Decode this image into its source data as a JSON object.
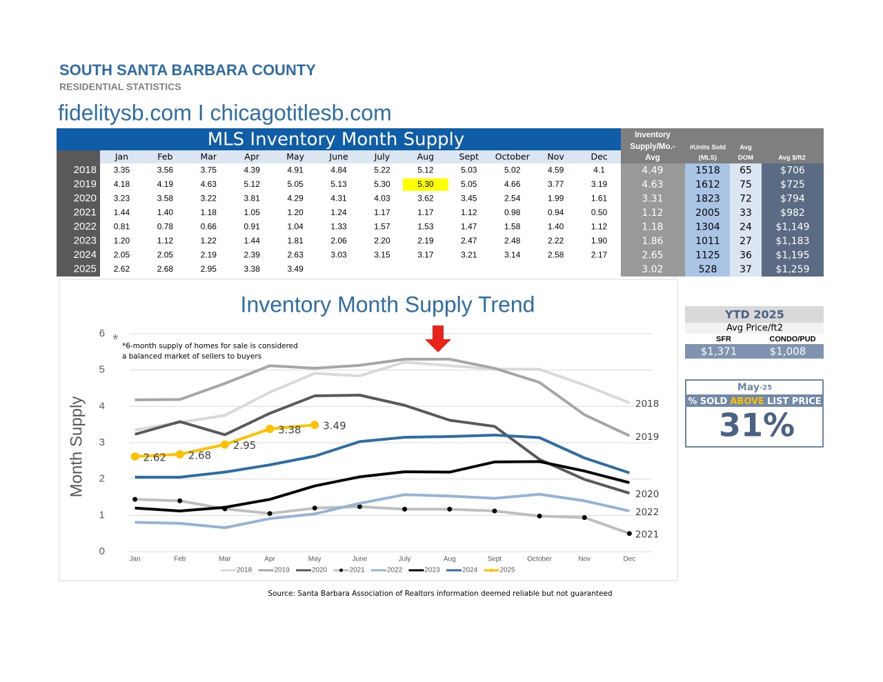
{
  "header": {
    "title": "SOUTH SANTA BARBARA COUNTY",
    "subtitle": "RESIDENTIAL STATISTICS",
    "website": "fidelitysb.com I chicagotitlesb.com"
  },
  "table": {
    "title": "MLS Inventory Month Supply",
    "months": [
      "Jan",
      "Feb",
      "Mar",
      "Apr",
      "May",
      "June",
      "July",
      "Aug",
      "Sept",
      "October",
      "Nov",
      "Dec"
    ],
    "summary_headers": [
      [
        "Inventory",
        "Supply/Mo.-",
        "Avg"
      ],
      [
        "#Units Sold",
        "(MLS)"
      ],
      [
        "Avg",
        "DOM"
      ],
      [
        "Avg $/ft2"
      ]
    ],
    "highlight": {
      "row": 1,
      "col": 7
    },
    "rows": [
      {
        "year": "2018",
        "values": [
          "3.35",
          "3.56",
          "3.75",
          "4.39",
          "4.91",
          "4.84",
          "5.22",
          "5.12",
          "5.03",
          "5.02",
          "4.59",
          "4.1"
        ],
        "avg": "4.49",
        "units": "1518",
        "dom": "65",
        "price": "$706"
      },
      {
        "year": "2019",
        "values": [
          "4.18",
          "4.19",
          "4.63",
          "5.12",
          "5.05",
          "5.13",
          "5.30",
          "5.30",
          "5.05",
          "4.66",
          "3.77",
          "3.19"
        ],
        "avg": "4.63",
        "units": "1612",
        "dom": "75",
        "price": "$725"
      },
      {
        "year": "2020",
        "values": [
          "3.23",
          "3.58",
          "3.22",
          "3.81",
          "4.29",
          "4.31",
          "4.03",
          "3.62",
          "3.45",
          "2.54",
          "1.99",
          "1.61"
        ],
        "avg": "3.31",
        "units": "1823",
        "dom": "72",
        "price": "$794"
      },
      {
        "year": "2021",
        "values": [
          "1.44",
          "1.40",
          "1.18",
          "1.05",
          "1.20",
          "1.24",
          "1.17",
          "1.17",
          "1.12",
          "0.98",
          "0.94",
          "0.50"
        ],
        "avg": "1.12",
        "units": "2005",
        "dom": "33",
        "price": "$982"
      },
      {
        "year": "2022",
        "values": [
          "0.81",
          "0.78",
          "0.66",
          "0.91",
          "1.04",
          "1.33",
          "1.57",
          "1.53",
          "1.47",
          "1.58",
          "1.40",
          "1.12"
        ],
        "avg": "1.18",
        "units": "1304",
        "dom": "24",
        "price": "$1,149"
      },
      {
        "year": "2023",
        "values": [
          "1.20",
          "1.12",
          "1.22",
          "1.44",
          "1.81",
          "2.06",
          "2.20",
          "2.19",
          "2.47",
          "2.48",
          "2.22",
          "1.90"
        ],
        "avg": "1.86",
        "units": "1011",
        "dom": "27",
        "price": "$1,183"
      },
      {
        "year": "2024",
        "values": [
          "2.05",
          "2.05",
          "2.19",
          "2.39",
          "2.63",
          "3.03",
          "3.15",
          "3.17",
          "3.21",
          "3.14",
          "2.58",
          "2.17"
        ],
        "avg": "2.65",
        "units": "1125",
        "dom": "36",
        "price": "$1,195"
      },
      {
        "year": "2025",
        "values": [
          "2.62",
          "2.68",
          "2.95",
          "3.38",
          "3.49"
        ],
        "avg": "3.02",
        "units": "528",
        "dom": "37",
        "price": "$1,259"
      }
    ]
  },
  "chart_data": {
    "type": "line",
    "title": "Inventory Month Supply Trend",
    "y_label": "Month Supply",
    "asterisk": "*",
    "annotation": [
      "*6-month supply of homes for sale is considered",
      "a balanced market of sellers to buyers"
    ],
    "categories": [
      "Jan",
      "Feb",
      "Mar",
      "Apr",
      "May",
      "June",
      "July",
      "Aug",
      "Sept",
      "October",
      "Nov",
      "Dec"
    ],
    "ylim": [
      0,
      6
    ],
    "yticks": [
      0,
      1,
      2,
      3,
      4,
      5,
      6
    ],
    "grid": true,
    "legend": "bottom",
    "series": [
      {
        "name": "2018",
        "color": "#d9d9d9",
        "end_label": true,
        "values": [
          3.35,
          3.56,
          3.75,
          4.39,
          4.91,
          4.84,
          5.22,
          5.12,
          5.03,
          5.02,
          4.59,
          4.1
        ]
      },
      {
        "name": "2019",
        "color": "#a6a6a6",
        "end_label": true,
        "values": [
          4.18,
          4.19,
          4.63,
          5.12,
          5.05,
          5.13,
          5.3,
          5.3,
          5.05,
          4.66,
          3.77,
          3.19
        ]
      },
      {
        "name": "2020",
        "color": "#595959",
        "end_label": true,
        "values": [
          3.23,
          3.58,
          3.22,
          3.81,
          4.29,
          4.31,
          4.03,
          3.62,
          3.45,
          2.54,
          1.99,
          1.61
        ]
      },
      {
        "name": "2021",
        "color": "#bfbfbf",
        "end_label": true,
        "marker": "circle",
        "marker_color": "#000000",
        "values": [
          1.44,
          1.4,
          1.18,
          1.05,
          1.2,
          1.24,
          1.17,
          1.17,
          1.12,
          0.98,
          0.94,
          0.5
        ]
      },
      {
        "name": "2022",
        "color": "#95b3d7",
        "end_label": true,
        "values": [
          0.81,
          0.78,
          0.66,
          0.91,
          1.04,
          1.33,
          1.57,
          1.53,
          1.47,
          1.58,
          1.4,
          1.12
        ]
      },
      {
        "name": "2023",
        "color": "#000000",
        "values": [
          1.2,
          1.12,
          1.22,
          1.44,
          1.81,
          2.06,
          2.2,
          2.19,
          2.47,
          2.48,
          2.22,
          1.9
        ]
      },
      {
        "name": "2024",
        "color": "#2e6da4",
        "values": [
          2.05,
          2.05,
          2.19,
          2.39,
          2.63,
          3.03,
          3.15,
          3.17,
          3.21,
          3.14,
          2.58,
          2.17
        ]
      },
      {
        "name": "2025",
        "color": "#ffc000",
        "marker": "circle",
        "marker_color": "#ffc000",
        "data_labels": true,
        "values": [
          2.62,
          2.68,
          2.95,
          3.38,
          3.49,
          null,
          null,
          null,
          null,
          null,
          null,
          null
        ]
      }
    ]
  },
  "ytd": {
    "title": "YTD 2025",
    "subtitle": "Avg Price/ft2",
    "columns": [
      "SFR",
      "CONDO/PUD"
    ],
    "values": [
      "$1,371",
      "$1,008"
    ]
  },
  "sold": {
    "month": [
      "May",
      "-25"
    ],
    "label": [
      "% SOLD",
      "ABOVE",
      "LIST PRICE"
    ],
    "value": "31%"
  },
  "source": "Source: Santa Barbara Association of Realtors information deemed reliable but not guaranteed"
}
